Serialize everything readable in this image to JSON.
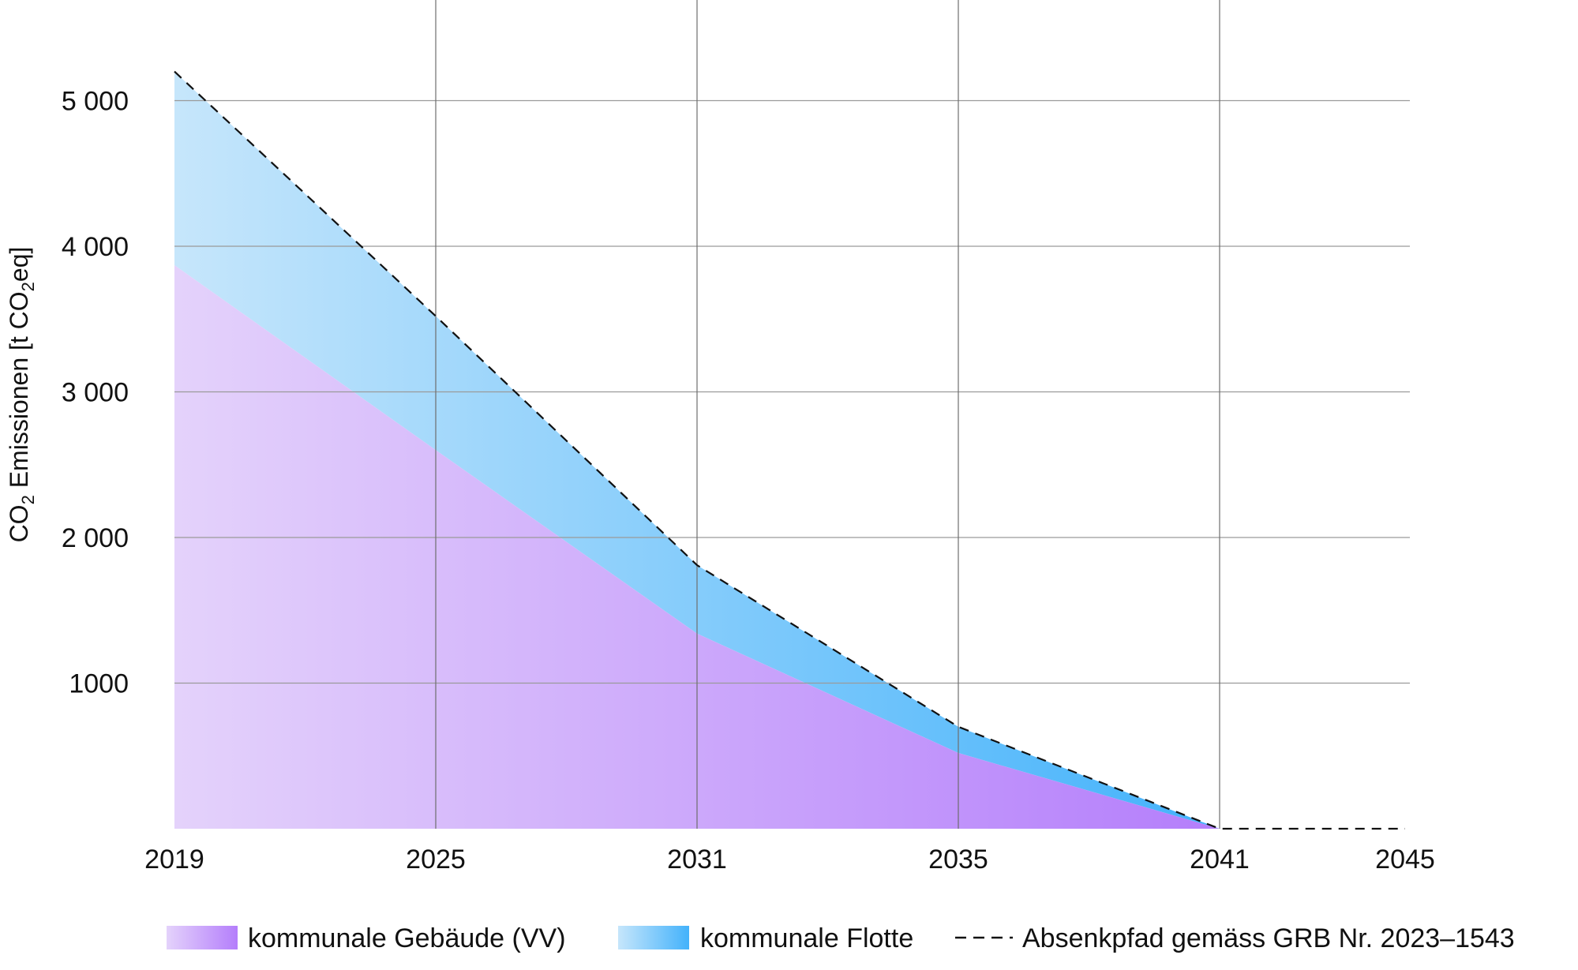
{
  "chart_data": {
    "type": "area",
    "ylabel": {
      "prefix": "CO",
      "sub1": "2",
      "middle": " Emissionen [t CO",
      "sub2": "2",
      "suffix": "eq]"
    },
    "x_ticks": [
      "2019",
      "2025",
      "2031",
      "2035",
      "2041",
      "2045"
    ],
    "y_ticks": [
      "1000",
      "2 000",
      "3 000",
      "4 000",
      "5 000"
    ],
    "y_tick_values": [
      1000,
      2000,
      3000,
      4000,
      5000
    ],
    "xlim": [
      2019,
      2045
    ],
    "ylim": [
      0,
      5000
    ],
    "grid": true,
    "legend_position": "bottom",
    "series": [
      {
        "name": "kommunale Gebäude (VV)",
        "color_start": "#e4d2fb",
        "color_end": "#b47efb",
        "x": [
          2019,
          2025,
          2031,
          2035,
          2041
        ],
        "values": [
          3870,
          2600,
          1340,
          520,
          0
        ]
      },
      {
        "name": "kommunale Flotte",
        "color_start": "#c6e6fb",
        "color_end": "#43b2fb",
        "x": [
          2019,
          2025,
          2031,
          2035,
          2041
        ],
        "values": [
          1330,
          920,
          470,
          180,
          0
        ]
      }
    ],
    "target_path": {
      "name": "Absenkpfad gemäss GRB Nr. 2023–1543",
      "style": "dashed",
      "color": "#111111",
      "x": [
        2019,
        2025,
        2031,
        2035,
        2041,
        2045
      ],
      "values": [
        5200,
        3520,
        1810,
        700,
        0,
        0
      ]
    }
  }
}
